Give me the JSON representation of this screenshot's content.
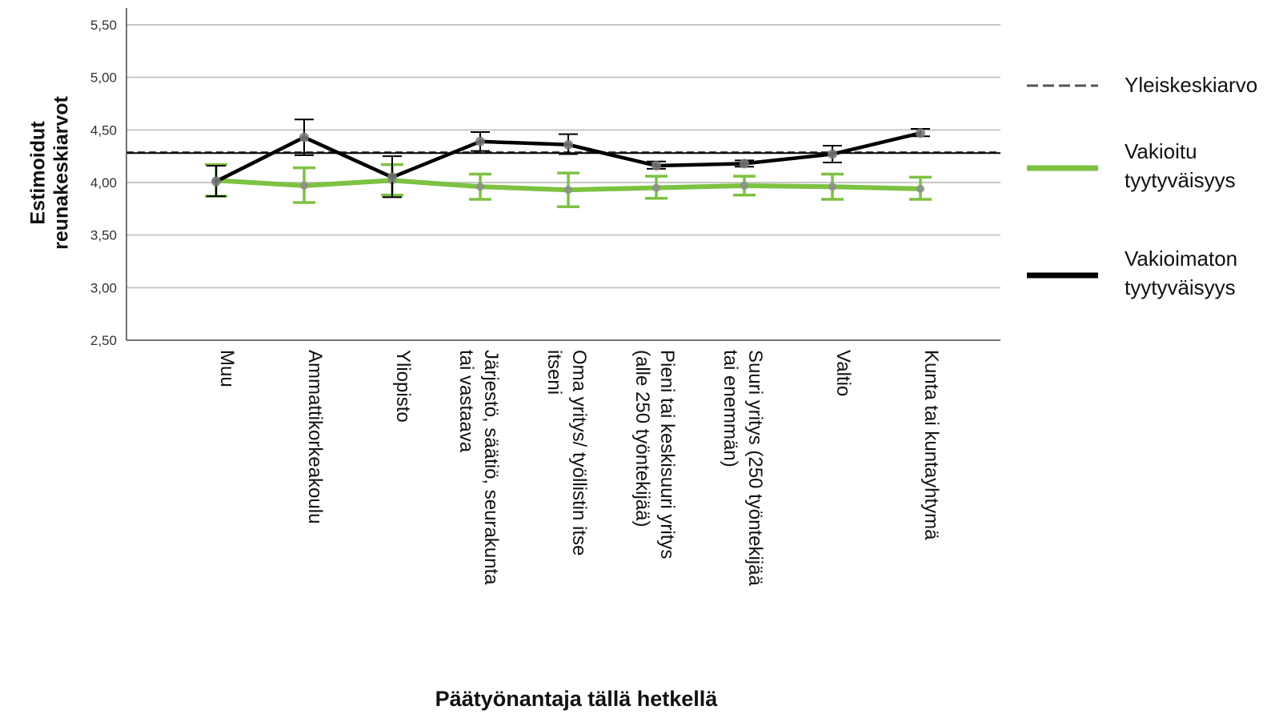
{
  "chart_data": {
    "type": "line",
    "title": "",
    "xlabel": "Päätyönantaja tällä hetkellä",
    "ylabel": "Estimoidut reunakeskiarvot",
    "ylim": [
      2.5,
      5.5
    ],
    "yticks": [
      "5,50",
      "5,00",
      "4,50",
      "4,00",
      "3,50",
      "3,00",
      "2,50"
    ],
    "categories": [
      "Muu",
      "Ammattikorkeakoulu",
      "Yliopisto",
      "Järjestö, säätiö, seurakunta tai vastaava",
      "Oma yritys/ työllistin itse itseni",
      "Pieni tai keskisuuri yritys (alle 250 työntekijää)",
      "Suuri yritys (250 työntekijää tai enemmän)",
      "Valtio",
      "Kunta tai kuntayhtymä"
    ],
    "category_lines": [
      [
        "Muu"
      ],
      [
        "Ammattikorkeakoulu"
      ],
      [
        "Yliopisto"
      ],
      [
        "Järjestö, säätiö, seurakunta",
        "tai vastaava"
      ],
      [
        "Oma yritys/ työllistin itse",
        "itseni"
      ],
      [
        "Pieni tai keskisuuri yritys",
        "(alle 250 työntekijää)"
      ],
      [
        "Suuri yritys (250 työntekijää",
        "tai enemmän)"
      ],
      [
        "Valtio"
      ],
      [
        "Kunta tai kuntayhtymä"
      ]
    ],
    "grid": true,
    "legend_position": "right",
    "reference_lines": [
      {
        "name": "Yleiskeskiarvo",
        "value": 4.29,
        "style": "dashed",
        "color": "#555555"
      },
      {
        "value": 4.28,
        "style": "solid",
        "color": "#000000"
      }
    ],
    "series": [
      {
        "name": "Vakioitu tyytyväisyys",
        "color": "#7dc242",
        "values": [
          4.02,
          3.97,
          4.02,
          3.96,
          3.93,
          3.95,
          3.97,
          3.96,
          3.94
        ],
        "lower": [
          3.87,
          3.81,
          3.88,
          3.84,
          3.77,
          3.85,
          3.88,
          3.84,
          3.84
        ],
        "upper": [
          4.17,
          4.14,
          4.17,
          4.08,
          4.09,
          4.06,
          4.06,
          4.08,
          4.05
        ]
      },
      {
        "name": "Vakioimaton tyytyväisyys",
        "color": "#000000",
        "values": [
          4.01,
          4.43,
          4.05,
          4.39,
          4.36,
          4.16,
          4.18,
          4.27,
          4.47
        ],
        "lower": [
          3.87,
          4.26,
          3.86,
          4.3,
          4.27,
          4.13,
          4.15,
          4.19,
          4.44
        ],
        "upper": [
          4.16,
          4.6,
          4.25,
          4.48,
          4.46,
          4.2,
          4.21,
          4.35,
          4.51
        ]
      }
    ],
    "legend": [
      {
        "lines": [
          "Yleiskeskiarvo"
        ],
        "color": "#555555",
        "style": "dashed"
      },
      {
        "lines": [
          "Vakioitu",
          "tyytyväisyys"
        ],
        "color": "#7dc242",
        "style": "solid"
      },
      {
        "lines": [
          "Vakioimaton",
          "tyytyväisyys"
        ],
        "color": "#000000",
        "style": "solid"
      }
    ]
  }
}
